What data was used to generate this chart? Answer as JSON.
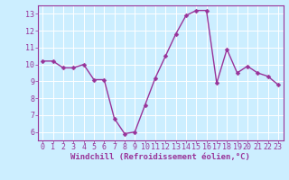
{
  "x": [
    0,
    1,
    2,
    3,
    4,
    5,
    6,
    7,
    8,
    9,
    10,
    11,
    12,
    13,
    14,
    15,
    16,
    17,
    18,
    19,
    20,
    21,
    22,
    23
  ],
  "y": [
    10.2,
    10.2,
    9.8,
    9.8,
    10.0,
    9.1,
    9.1,
    6.8,
    5.9,
    6.0,
    7.6,
    9.2,
    10.5,
    11.8,
    12.9,
    13.2,
    13.2,
    8.9,
    10.9,
    9.5,
    9.9,
    9.5,
    9.3,
    8.8
  ],
  "line_color": "#993399",
  "marker": "D",
  "markersize": 2.5,
  "linewidth": 1.0,
  "bg_color": "#cceeff",
  "grid_color": "#ffffff",
  "xlabel": "Windchill (Refroidissement éolien,°C)",
  "xlim": [
    -0.5,
    23.5
  ],
  "ylim": [
    5.5,
    13.5
  ],
  "yticks": [
    6,
    7,
    8,
    9,
    10,
    11,
    12,
    13
  ],
  "xticks": [
    0,
    1,
    2,
    3,
    4,
    5,
    6,
    7,
    8,
    9,
    10,
    11,
    12,
    13,
    14,
    15,
    16,
    17,
    18,
    19,
    20,
    21,
    22,
    23
  ],
  "tick_color": "#993399",
  "label_color": "#993399",
  "xlabel_fontsize": 6.5,
  "tick_fontsize": 6.0,
  "spine_color": "#993399"
}
